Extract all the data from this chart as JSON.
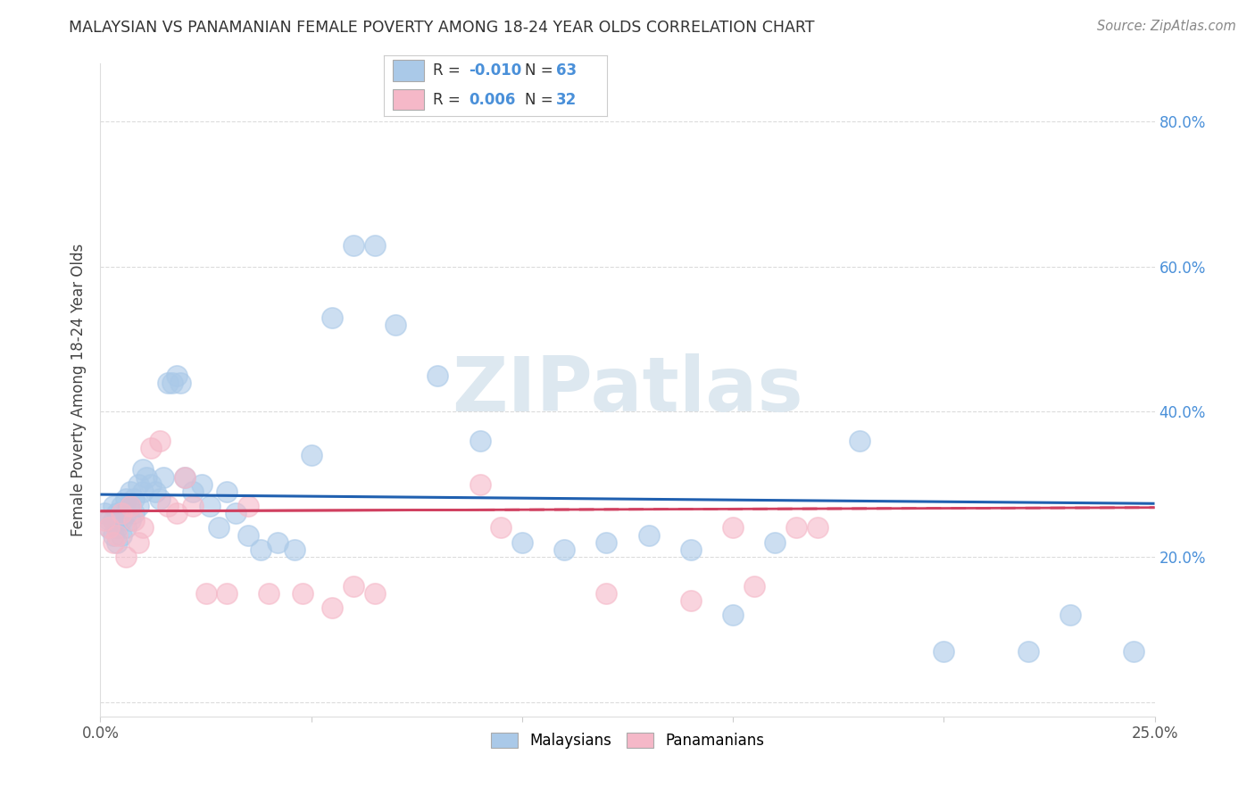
{
  "title": "MALAYSIAN VS PANAMANIAN FEMALE POVERTY AMONG 18-24 YEAR OLDS CORRELATION CHART",
  "source": "Source: ZipAtlas.com",
  "ylabel": "Female Poverty Among 18-24 Year Olds",
  "xlim": [
    0.0,
    0.25
  ],
  "ylim": [
    -0.02,
    0.88
  ],
  "yticks": [
    0.0,
    0.2,
    0.4,
    0.6,
    0.8
  ],
  "ytick_labels": [
    "",
    "20.0%",
    "40.0%",
    "60.0%",
    "80.0%"
  ],
  "xticks": [
    0.0,
    0.05,
    0.1,
    0.15,
    0.2,
    0.25
  ],
  "xtick_labels": [
    "0.0%",
    "",
    "",
    "",
    "",
    "25.0%"
  ],
  "malaysians_x": [
    0.001,
    0.002,
    0.002,
    0.003,
    0.003,
    0.003,
    0.004,
    0.004,
    0.004,
    0.005,
    0.005,
    0.005,
    0.006,
    0.006,
    0.006,
    0.007,
    0.007,
    0.007,
    0.008,
    0.008,
    0.009,
    0.009,
    0.01,
    0.01,
    0.011,
    0.012,
    0.013,
    0.014,
    0.015,
    0.016,
    0.017,
    0.018,
    0.019,
    0.02,
    0.022,
    0.024,
    0.026,
    0.028,
    0.03,
    0.032,
    0.035,
    0.038,
    0.042,
    0.046,
    0.05,
    0.055,
    0.06,
    0.065,
    0.07,
    0.08,
    0.09,
    0.1,
    0.11,
    0.12,
    0.13,
    0.14,
    0.15,
    0.16,
    0.18,
    0.2,
    0.22,
    0.23,
    0.245
  ],
  "malaysians_y": [
    0.26,
    0.25,
    0.24,
    0.27,
    0.25,
    0.23,
    0.26,
    0.24,
    0.22,
    0.27,
    0.25,
    0.23,
    0.28,
    0.26,
    0.24,
    0.29,
    0.27,
    0.25,
    0.28,
    0.26,
    0.3,
    0.27,
    0.32,
    0.29,
    0.31,
    0.3,
    0.29,
    0.28,
    0.31,
    0.44,
    0.44,
    0.45,
    0.44,
    0.31,
    0.29,
    0.3,
    0.27,
    0.24,
    0.29,
    0.26,
    0.23,
    0.21,
    0.22,
    0.21,
    0.34,
    0.53,
    0.63,
    0.63,
    0.52,
    0.45,
    0.36,
    0.22,
    0.21,
    0.22,
    0.23,
    0.21,
    0.12,
    0.22,
    0.36,
    0.07,
    0.07,
    0.12,
    0.07
  ],
  "panamanians_x": [
    0.001,
    0.002,
    0.003,
    0.004,
    0.005,
    0.006,
    0.007,
    0.008,
    0.009,
    0.01,
    0.012,
    0.014,
    0.016,
    0.018,
    0.02,
    0.022,
    0.025,
    0.03,
    0.035,
    0.04,
    0.048,
    0.055,
    0.06,
    0.065,
    0.09,
    0.095,
    0.12,
    0.14,
    0.15,
    0.155,
    0.165,
    0.17
  ],
  "panamanians_y": [
    0.25,
    0.24,
    0.22,
    0.23,
    0.26,
    0.2,
    0.27,
    0.25,
    0.22,
    0.24,
    0.35,
    0.36,
    0.27,
    0.26,
    0.31,
    0.27,
    0.15,
    0.15,
    0.27,
    0.15,
    0.15,
    0.13,
    0.16,
    0.15,
    0.3,
    0.24,
    0.15,
    0.14,
    0.24,
    0.16,
    0.24,
    0.24
  ],
  "malaysian_color": "#aac9e8",
  "panamanian_color": "#f5b8c8",
  "malaysian_line_color": "#2060b0",
  "panamanian_line_color": "#d04060",
  "watermark_color": "#dde8f0",
  "background_color": "#ffffff",
  "grid_color": "#cccccc",
  "title_color": "#333333",
  "source_color": "#888888",
  "right_tick_color": "#4a90d9"
}
